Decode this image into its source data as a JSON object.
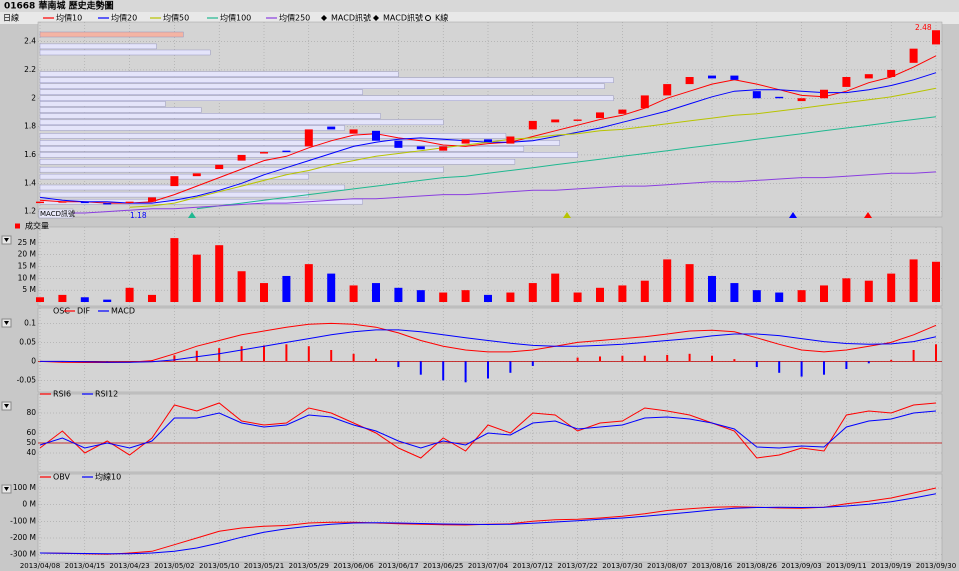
{
  "chart_data": [
    {
      "type": "candlestick",
      "title": "01668 華南城  歷史走勢圖",
      "interval": "日線",
      "up_color": "#ff0000",
      "down_color": "#0000ff",
      "open": [
        1.26,
        1.27,
        1.27,
        1.26,
        1.26,
        1.27,
        1.38,
        1.45,
        1.5,
        1.56,
        1.61,
        1.63,
        1.66,
        1.8,
        1.75,
        1.77,
        1.7,
        1.66,
        1.63,
        1.68,
        1.71,
        1.68,
        1.78,
        1.83,
        1.84,
        1.86,
        1.89,
        1.93,
        2.02,
        2.1,
        2.16,
        2.16,
        2.05,
        2.01,
        1.98,
        2.0,
        2.08,
        2.14,
        2.15,
        2.25,
        2.38
      ],
      "close": [
        1.27,
        1.27,
        1.26,
        1.25,
        1.27,
        1.3,
        1.45,
        1.47,
        1.53,
        1.6,
        1.62,
        1.62,
        1.78,
        1.78,
        1.78,
        1.7,
        1.65,
        1.64,
        1.66,
        1.71,
        1.69,
        1.73,
        1.84,
        1.85,
        1.85,
        1.9,
        1.92,
        2.02,
        2.1,
        2.15,
        2.14,
        2.13,
        2.0,
        2.0,
        2.0,
        2.06,
        2.15,
        2.17,
        2.2,
        2.35,
        2.48
      ],
      "series": [
        {
          "name": "均價10",
          "color": "#ff0000",
          "values": [
            1.28,
            1.27,
            1.27,
            1.26,
            1.26,
            1.27,
            1.32,
            1.38,
            1.44,
            1.5,
            1.56,
            1.59,
            1.65,
            1.7,
            1.74,
            1.75,
            1.72,
            1.7,
            1.67,
            1.66,
            1.68,
            1.69,
            1.73,
            1.77,
            1.81,
            1.85,
            1.88,
            1.93,
            2.0,
            2.05,
            2.1,
            2.13,
            2.1,
            2.06,
            2.02,
            2.01,
            2.05,
            2.11,
            2.15,
            2.22,
            2.3
          ]
        },
        {
          "name": "均價20",
          "color": "#0000ff",
          "values": [
            1.3,
            1.28,
            1.27,
            1.27,
            1.26,
            1.26,
            1.28,
            1.31,
            1.35,
            1.4,
            1.46,
            1.51,
            1.56,
            1.61,
            1.66,
            1.69,
            1.71,
            1.72,
            1.71,
            1.7,
            1.69,
            1.69,
            1.7,
            1.73,
            1.76,
            1.79,
            1.83,
            1.87,
            1.91,
            1.96,
            2.01,
            2.05,
            2.06,
            2.06,
            2.05,
            2.04,
            2.04,
            2.06,
            2.09,
            2.13,
            2.18
          ]
        },
        {
          "name": "均價50",
          "color": "#b8c400",
          "values": [
            null,
            null,
            null,
            null,
            1.23,
            1.24,
            1.26,
            1.3,
            1.34,
            1.38,
            1.42,
            1.46,
            1.49,
            1.53,
            1.56,
            1.59,
            1.61,
            1.63,
            1.65,
            1.67,
            1.69,
            1.71,
            1.72,
            1.74,
            1.75,
            1.77,
            1.78,
            1.8,
            1.82,
            1.84,
            1.86,
            1.88,
            1.89,
            1.91,
            1.93,
            1.95,
            1.97,
            1.99,
            2.01,
            2.04,
            2.07
          ]
        },
        {
          "name": "均價100",
          "color": "#20b890",
          "values": [
            null,
            null,
            null,
            null,
            null,
            null,
            null,
            1.22,
            1.24,
            1.26,
            1.28,
            1.3,
            1.32,
            1.34,
            1.36,
            1.38,
            1.4,
            1.42,
            1.44,
            1.45,
            1.47,
            1.49,
            1.51,
            1.53,
            1.55,
            1.57,
            1.59,
            1.61,
            1.63,
            1.65,
            1.67,
            1.69,
            1.71,
            1.73,
            1.75,
            1.77,
            1.79,
            1.81,
            1.83,
            1.85,
            1.87
          ]
        },
        {
          "name": "均價250",
          "color": "#8a3ee0",
          "values": [
            1.18,
            1.19,
            1.19,
            1.2,
            1.21,
            1.22,
            1.22,
            1.23,
            1.24,
            1.25,
            1.26,
            1.26,
            1.27,
            1.28,
            1.29,
            1.29,
            1.3,
            1.31,
            1.32,
            1.32,
            1.33,
            1.34,
            1.35,
            1.35,
            1.36,
            1.37,
            1.38,
            1.38,
            1.39,
            1.4,
            1.41,
            1.41,
            1.42,
            1.43,
            1.44,
            1.44,
            1.45,
            1.46,
            1.47,
            1.47,
            1.48
          ]
        }
      ],
      "legend_extra": [
        "MACD訊號",
        "MACD訊號",
        "K線"
      ],
      "annotations": [
        "2.48",
        "1.18",
        "MACD訊號"
      ],
      "volume_profile": {
        "color": "#e4e4fa",
        "current_color": "#f4b4a4",
        "xlim": [
          0,
          100
        ],
        "levels": [
          2.45,
          2.366,
          2.323,
          2.17,
          2.127,
          2.085,
          2.043,
          2.0,
          1.96,
          1.917,
          1.875,
          1.83,
          1.79,
          1.734,
          1.685,
          1.643,
          1.6,
          1.552,
          1.496,
          1.447,
          1.37,
          1.32,
          1.27
        ],
        "values": [
          16,
          13,
          19,
          40,
          64,
          63,
          36,
          64,
          14,
          18,
          38,
          45,
          34,
          52,
          58,
          54,
          60,
          53,
          45,
          30,
          34,
          30,
          36
        ]
      },
      "ylim": [
        1.19,
        2.51
      ],
      "yticks": [
        1.2,
        1.4,
        1.6,
        1.8,
        2,
        2.2,
        2.4
      ],
      "grid": true
    },
    {
      "type": "bar",
      "legend": "成交量",
      "up_color": "#ff0000",
      "down_color": "#0000ff",
      "values": [
        2,
        3,
        2,
        1,
        6,
        3,
        27,
        20,
        24,
        13,
        8,
        11,
        16,
        12,
        7,
        8,
        6,
        5,
        4,
        5,
        3,
        4,
        8,
        12,
        4,
        6,
        7,
        9,
        18,
        16,
        11,
        8,
        5,
        4,
        5,
        7,
        10,
        9,
        12,
        18,
        17
      ],
      "ylim": [
        0,
        30
      ],
      "yticks": [
        {
          "value": 5,
          "label": "5 M"
        },
        {
          "value": 10,
          "label": "10 M"
        },
        {
          "value": 15,
          "label": "15 M"
        },
        {
          "value": 20,
          "label": "20 M"
        },
        {
          "value": 25,
          "label": "25 M"
        }
      ],
      "grid": true
    },
    {
      "type": "macd",
      "osc": {
        "name": "OSC",
        "up_color": "#ff0000",
        "down_color": "#0000ff",
        "values": [
          0,
          -0.002,
          -0.002,
          -0.001,
          0,
          0.003,
          0.016,
          0.028,
          0.035,
          0.04,
          0.042,
          0.045,
          0.04,
          0.03,
          0.02,
          0.007,
          -0.015,
          -0.035,
          -0.05,
          -0.055,
          -0.045,
          -0.03,
          -0.012,
          0,
          0.01,
          0.013,
          0.015,
          0.015,
          0.017,
          0.02,
          0.015,
          0.006,
          -0.015,
          -0.03,
          -0.04,
          -0.035,
          -0.02,
          -0.005,
          0.004,
          0.03,
          0.045
        ]
      },
      "series": [
        {
          "name": "DIF",
          "color": "#ff0000",
          "values": [
            0,
            -0.002,
            -0.003,
            -0.003,
            -0.002,
            0.002,
            0.02,
            0.04,
            0.055,
            0.07,
            0.08,
            0.09,
            0.098,
            0.1,
            0.098,
            0.09,
            0.075,
            0.055,
            0.04,
            0.03,
            0.025,
            0.025,
            0.03,
            0.04,
            0.05,
            0.055,
            0.06,
            0.065,
            0.072,
            0.08,
            0.082,
            0.078,
            0.062,
            0.045,
            0.03,
            0.025,
            0.03,
            0.04,
            0.05,
            0.07,
            0.095
          ]
        },
        {
          "name": "MACD",
          "color": "#0000ff",
          "values": [
            0,
            0,
            -0.001,
            -0.002,
            -0.002,
            -0.001,
            0.004,
            0.012,
            0.02,
            0.03,
            0.04,
            0.05,
            0.06,
            0.07,
            0.078,
            0.083,
            0.083,
            0.078,
            0.07,
            0.062,
            0.055,
            0.048,
            0.042,
            0.04,
            0.04,
            0.042,
            0.045,
            0.05,
            0.055,
            0.06,
            0.067,
            0.072,
            0.072,
            0.068,
            0.06,
            0.052,
            0.047,
            0.045,
            0.046,
            0.052,
            0.065
          ]
        }
      ],
      "ylim": [
        -0.07,
        0.13
      ],
      "yticks": [
        -0.05,
        0,
        0.05,
        0.1
      ],
      "grid": true
    },
    {
      "type": "line",
      "reference_line": 50,
      "reference_color": "#c00000",
      "series": [
        {
          "name": "RSI6",
          "color": "#ff0000",
          "values": [
            45,
            62,
            40,
            52,
            38,
            55,
            88,
            82,
            90,
            72,
            68,
            70,
            85,
            80,
            70,
            60,
            45,
            35,
            55,
            42,
            68,
            60,
            80,
            78,
            62,
            70,
            72,
            85,
            82,
            78,
            70,
            62,
            35,
            38,
            45,
            42,
            78,
            82,
            80,
            88,
            90
          ]
        },
        {
          "name": "RSI12",
          "color": "#0000ff",
          "values": [
            48,
            55,
            45,
            50,
            45,
            52,
            75,
            75,
            80,
            70,
            66,
            68,
            78,
            76,
            68,
            62,
            52,
            45,
            52,
            48,
            60,
            58,
            70,
            72,
            64,
            66,
            68,
            75,
            76,
            74,
            70,
            64,
            46,
            45,
            47,
            46,
            66,
            72,
            74,
            80,
            82
          ]
        }
      ],
      "ylim": [
        25,
        95
      ],
      "yticks": [
        40,
        50,
        60,
        80
      ],
      "grid": true
    },
    {
      "type": "line",
      "series": [
        {
          "name": "OBV",
          "color": "#ff0000",
          "values": [
            -290,
            -292,
            -295,
            -298,
            -290,
            -280,
            -240,
            -200,
            -160,
            -140,
            -130,
            -125,
            -110,
            -105,
            -105,
            -110,
            -115,
            -118,
            -120,
            -122,
            -118,
            -115,
            -100,
            -90,
            -88,
            -80,
            -70,
            -55,
            -35,
            -25,
            -15,
            -12,
            -15,
            -20,
            -22,
            -15,
            5,
            20,
            40,
            70,
            100
          ]
        },
        {
          "name": "均線10",
          "color": "#0000ff",
          "values": [
            -290,
            -291,
            -293,
            -295,
            -294,
            -290,
            -280,
            -260,
            -230,
            -195,
            -165,
            -145,
            -130,
            -118,
            -110,
            -108,
            -110,
            -113,
            -116,
            -118,
            -119,
            -118,
            -112,
            -104,
            -96,
            -88,
            -80,
            -70,
            -58,
            -45,
            -32,
            -22,
            -17,
            -16,
            -17,
            -16,
            -8,
            3,
            18,
            40,
            65
          ]
        }
      ],
      "categories": [
        "2013/04/08",
        null,
        "2013/04/15",
        null,
        "2013/04/23",
        null,
        "2013/05/02",
        null,
        "2013/05/10",
        null,
        "2013/05/21",
        null,
        "2013/05/29",
        null,
        "2013/06/06",
        null,
        "2013/06/17",
        null,
        "2013/06/25",
        null,
        "2013/07/04",
        null,
        "2013/07/12",
        null,
        "2013/07/22",
        null,
        "2013/07/30",
        null,
        "2013/08/07",
        null,
        "2013/08/16",
        null,
        "2013/08/26",
        null,
        "2013/09/03",
        null,
        "2013/09/11",
        null,
        "2013/09/19",
        null,
        "2013/09/30"
      ],
      "ylim": [
        -320,
        160
      ],
      "yticks": [
        {
          "value": -300,
          "label": "-300 M"
        },
        {
          "value": -200,
          "label": "-200 M"
        },
        {
          "value": -100,
          "label": "-100 M"
        },
        {
          "value": 0,
          "label": "0 M"
        },
        {
          "value": 100,
          "label": "100 M"
        }
      ],
      "grid": true
    }
  ]
}
